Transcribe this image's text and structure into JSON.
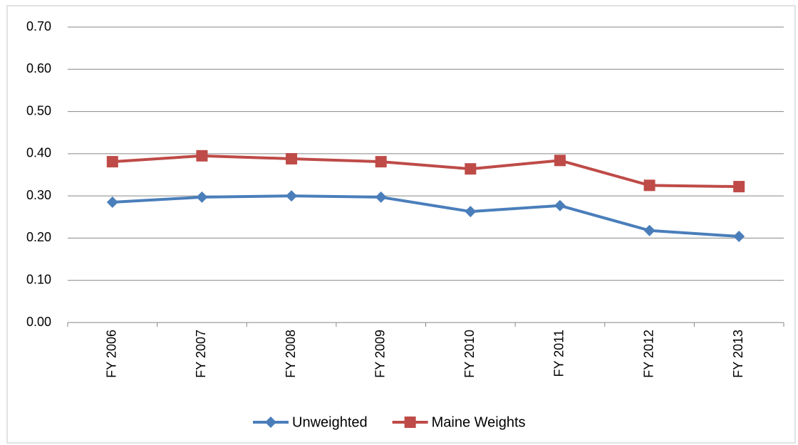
{
  "chart_data": {
    "type": "line",
    "categories": [
      "FY 2006",
      "FY 2007",
      "FY 2008",
      "FY 2009",
      "FY 2010",
      "FY 2011",
      "FY 2012",
      "FY 2013"
    ],
    "series": [
      {
        "name": "Unweighted",
        "color": "#4a7ebb",
        "marker": "diamond",
        "values": [
          0.285,
          0.297,
          0.3,
          0.297,
          0.263,
          0.277,
          0.218,
          0.204
        ]
      },
      {
        "name": "Maine Weights",
        "color": "#be4b48",
        "marker": "square",
        "values": [
          0.381,
          0.395,
          0.388,
          0.381,
          0.364,
          0.384,
          0.325,
          0.322
        ]
      }
    ],
    "ylim": [
      0,
      0.7
    ],
    "yticks": [
      {
        "value": 0,
        "label": "0.00"
      },
      {
        "value": 0.1,
        "label": "0.10"
      },
      {
        "value": 0.2,
        "label": "0.20"
      },
      {
        "value": 0.3,
        "label": "0.30"
      },
      {
        "value": 0.4,
        "label": "0.40"
      },
      {
        "value": 0.5,
        "label": "0.50"
      },
      {
        "value": 0.6,
        "label": "0.60"
      },
      {
        "value": 0.7,
        "label": "0.70"
      }
    ],
    "grid": true,
    "legend": "bottom"
  }
}
